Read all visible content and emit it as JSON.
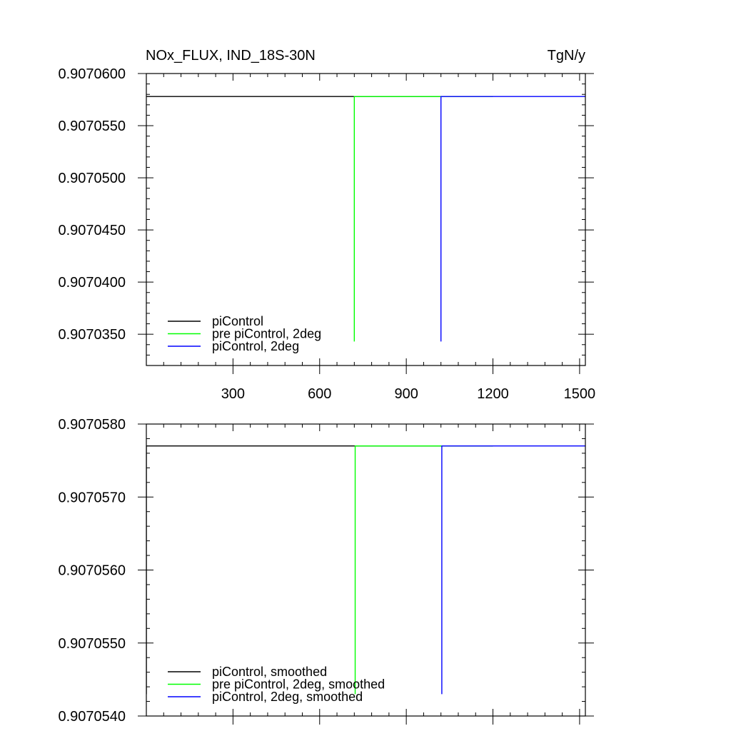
{
  "chart_data": [
    {
      "type": "line",
      "title": "NOx_FLUX, IND_18S-30N",
      "units": "TgN/y",
      "xlim": [
        0,
        1520
      ],
      "ylim": [
        0.907032,
        0.90706
      ],
      "xticks": [
        300,
        600,
        900,
        1200,
        1500
      ],
      "xtick_labels": [
        "300",
        "600",
        "900",
        "1200",
        "1500"
      ],
      "yticks": [
        0.907035,
        0.90704,
        0.907045,
        0.90705,
        0.907055,
        0.90706
      ],
      "ytick_labels": [
        "0.9070350",
        "0.9070400",
        "0.9070450",
        "0.9070500",
        "0.9070550",
        "0.9070600"
      ],
      "legend_position": "bottom-left",
      "series": [
        {
          "name": "piControl",
          "color": "#000000",
          "x": [
            0,
            1200
          ],
          "y": [
            0.9070578,
            0.9070578
          ]
        },
        {
          "name": "pre piControl, 2deg",
          "color": "#00ff00",
          "x": [
            720,
            720,
            1200
          ],
          "y": [
            0.9070343,
            0.9070578,
            0.9070578
          ]
        },
        {
          "name": "piControl, 2deg",
          "color": "#0000ff",
          "x": [
            1020,
            1020,
            1520
          ],
          "y": [
            0.9070343,
            0.9070578,
            0.9070578
          ]
        }
      ]
    },
    {
      "type": "line",
      "title": "",
      "units": "",
      "xlim": [
        0,
        1520
      ],
      "ylim": [
        0.907054,
        0.907058
      ],
      "xticks": [
        300,
        600,
        900,
        1200,
        1500
      ],
      "xtick_labels": [],
      "yticks": [
        0.907054,
        0.907055,
        0.907056,
        0.907057,
        0.907058
      ],
      "ytick_labels": [
        "0.9070540",
        "0.9070550",
        "0.9070560",
        "0.9070570",
        "0.9070580"
      ],
      "legend_position": "bottom-left",
      "series": [
        {
          "name": "piControl, smoothed",
          "color": "#000000",
          "x": [
            0,
            0,
            1200
          ],
          "y": [
            0.9070543,
            0.9070577,
            0.9070577
          ]
        },
        {
          "name": "pre piControl, 2deg, smoothed",
          "color": "#00ff00",
          "x": [
            723,
            723,
            1200
          ],
          "y": [
            0.9070543,
            0.9070577,
            0.9070577
          ]
        },
        {
          "name": "piControl, 2deg, smoothed",
          "color": "#0000ff",
          "x": [
            1023,
            1023,
            1520
          ],
          "y": [
            0.9070543,
            0.9070577,
            0.9070577
          ]
        }
      ]
    }
  ]
}
